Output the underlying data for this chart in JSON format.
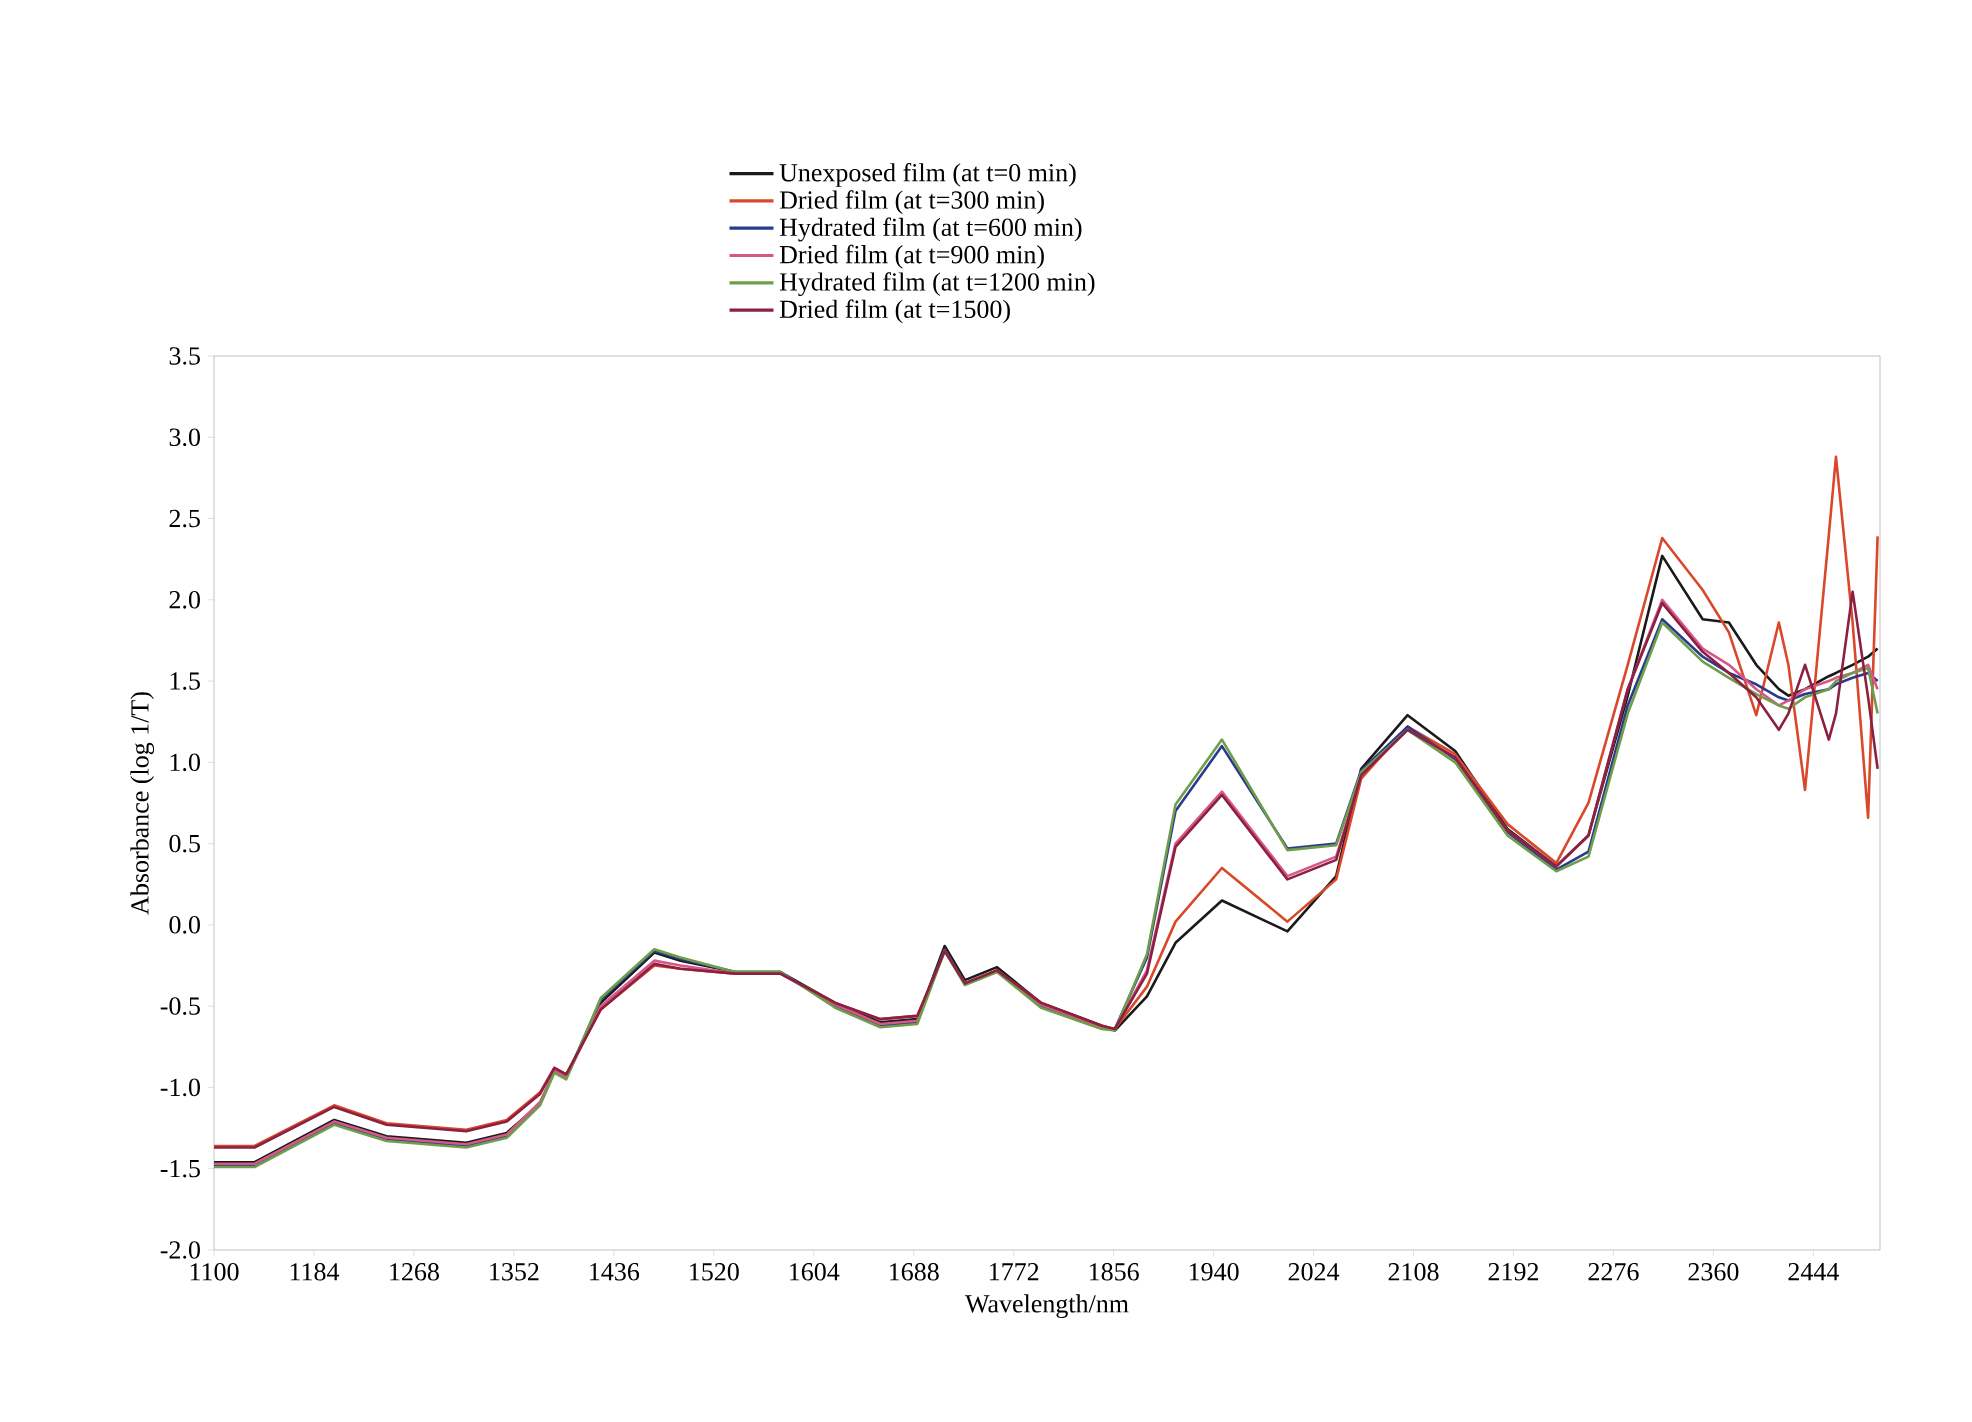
{
  "chart_data": {
    "type": "line",
    "xlabel": "Wavelength/nm",
    "ylabel": "Absorbance (log 1/T)",
    "x": [
      1100,
      1134,
      1201,
      1245,
      1312,
      1346,
      1374,
      1386,
      1396,
      1425,
      1470,
      1492,
      1538,
      1576,
      1622,
      1660,
      1691,
      1714,
      1731,
      1758,
      1795,
      1846,
      1857,
      1884,
      1908,
      1947,
      2002,
      2043,
      2064,
      2103,
      2143,
      2187,
      2228,
      2255,
      2288,
      2317,
      2351,
      2373,
      2396,
      2415,
      2423,
      2437,
      2457,
      2463,
      2477,
      2490,
      2498
    ],
    "series": [
      {
        "name": "Unexposed film (at t=0 min)",
        "color": "#1a1a1a",
        "values": [
          -1.46,
          -1.46,
          -1.2,
          -1.3,
          -1.34,
          -1.28,
          -1.1,
          -0.9,
          -0.94,
          -0.48,
          -0.17,
          -0.22,
          -0.29,
          -0.29,
          -0.48,
          -0.6,
          -0.58,
          -0.13,
          -0.34,
          -0.26,
          -0.48,
          -0.62,
          -0.65,
          -0.44,
          -0.11,
          0.15,
          -0.04,
          0.3,
          0.96,
          1.29,
          1.07,
          0.59,
          0.36,
          0.55,
          1.41,
          2.27,
          1.88,
          1.86,
          1.6,
          1.45,
          1.41,
          1.45,
          1.53,
          1.55,
          1.6,
          1.65,
          1.7
        ]
      },
      {
        "name": "Dried film (at t=300 min)",
        "color": "#d9482b",
        "values": [
          -1.36,
          -1.36,
          -1.11,
          -1.22,
          -1.26,
          -1.2,
          -1.03,
          -0.88,
          -0.92,
          -0.52,
          -0.25,
          -0.27,
          -0.3,
          -0.3,
          -0.48,
          -0.58,
          -0.56,
          -0.16,
          -0.36,
          -0.28,
          -0.48,
          -0.62,
          -0.64,
          -0.38,
          0.02,
          0.35,
          0.02,
          0.28,
          0.9,
          1.22,
          1.05,
          0.62,
          0.38,
          0.75,
          1.6,
          2.38,
          2.06,
          1.8,
          1.29,
          1.86,
          1.6,
          0.83,
          2.4,
          2.88,
          1.86,
          0.66,
          2.39
        ]
      },
      {
        "name": "Hydrated film (at t=600 min)",
        "color": "#2b3a8c",
        "values": [
          -1.48,
          -1.48,
          -1.22,
          -1.32,
          -1.36,
          -1.3,
          -1.1,
          -0.9,
          -0.94,
          -0.46,
          -0.16,
          -0.21,
          -0.29,
          -0.29,
          -0.5,
          -0.62,
          -0.6,
          -0.15,
          -0.36,
          -0.28,
          -0.5,
          -0.63,
          -0.64,
          -0.2,
          0.7,
          1.1,
          0.47,
          0.5,
          0.95,
          1.22,
          1.02,
          0.57,
          0.34,
          0.45,
          1.35,
          1.88,
          1.65,
          1.55,
          1.48,
          1.4,
          1.38,
          1.42,
          1.45,
          1.48,
          1.52,
          1.55,
          1.5
        ]
      },
      {
        "name": "Dried film (at t=900 min)",
        "color": "#d8578a",
        "values": [
          -1.47,
          -1.47,
          -1.21,
          -1.31,
          -1.35,
          -1.29,
          -1.09,
          -0.9,
          -0.94,
          -0.5,
          -0.22,
          -0.25,
          -0.3,
          -0.3,
          -0.49,
          -0.61,
          -0.59,
          -0.16,
          -0.36,
          -0.28,
          -0.49,
          -0.63,
          -0.64,
          -0.28,
          0.5,
          0.82,
          0.3,
          0.42,
          0.92,
          1.2,
          1.03,
          0.58,
          0.36,
          0.55,
          1.45,
          2.0,
          1.7,
          1.6,
          1.45,
          1.35,
          1.38,
          1.45,
          1.5,
          1.52,
          1.55,
          1.6,
          1.45
        ]
      },
      {
        "name": "Hydrated film (at t=1200 min)",
        "color": "#6e9e4a",
        "values": [
          -1.49,
          -1.49,
          -1.23,
          -1.33,
          -1.37,
          -1.31,
          -1.11,
          -0.91,
          -0.95,
          -0.45,
          -0.15,
          -0.2,
          -0.29,
          -0.29,
          -0.51,
          -0.63,
          -0.61,
          -0.16,
          -0.37,
          -0.29,
          -0.51,
          -0.64,
          -0.65,
          -0.18,
          0.74,
          1.14,
          0.46,
          0.49,
          0.94,
          1.2,
          1.0,
          0.55,
          0.33,
          0.42,
          1.3,
          1.86,
          1.62,
          1.52,
          1.42,
          1.35,
          1.33,
          1.4,
          1.45,
          1.5,
          1.55,
          1.58,
          1.3
        ]
      },
      {
        "name": "Dried film (at t=1500)",
        "color": "#8b2040",
        "values": [
          -1.37,
          -1.37,
          -1.12,
          -1.23,
          -1.27,
          -1.21,
          -1.04,
          -0.88,
          -0.92,
          -0.52,
          -0.24,
          -0.27,
          -0.3,
          -0.3,
          -0.48,
          -0.58,
          -0.56,
          -0.16,
          -0.36,
          -0.28,
          -0.48,
          -0.62,
          -0.64,
          -0.3,
          0.48,
          0.8,
          0.28,
          0.4,
          0.92,
          1.2,
          1.03,
          0.58,
          0.36,
          0.55,
          1.45,
          1.98,
          1.68,
          1.55,
          1.4,
          1.2,
          1.3,
          1.6,
          1.14,
          1.3,
          2.05,
          1.4,
          0.96
        ]
      }
    ],
    "xlim": [
      1100,
      2500
    ],
    "ylim": [
      -2.0,
      3.5
    ],
    "xticks": [
      1100,
      1184,
      1268,
      1352,
      1436,
      1520,
      1604,
      1688,
      1772,
      1856,
      1940,
      2024,
      2108,
      2192,
      2276,
      2360,
      2444
    ],
    "yticks": [
      {
        "value": -2.0,
        "label": "-2.0"
      },
      {
        "value": -1.5,
        "label": "-1.5"
      },
      {
        "value": -1.0,
        "label": "-1.0"
      },
      {
        "value": -0.5,
        "label": "-0.5"
      },
      {
        "value": 0.0,
        "label": "0.0"
      },
      {
        "value": 0.5,
        "label": "0.5"
      },
      {
        "value": 1.0,
        "label": "1.0"
      },
      {
        "value": 1.5,
        "label": "1.5"
      },
      {
        "value": 2.0,
        "label": "2.0"
      },
      {
        "value": 2.5,
        "label": "2.5"
      },
      {
        "value": 3.0,
        "label": "3.0"
      },
      {
        "value": 3.5,
        "label": "3.5"
      }
    ],
    "legend": "top",
    "marker": "none",
    "line_style": "solid"
  }
}
